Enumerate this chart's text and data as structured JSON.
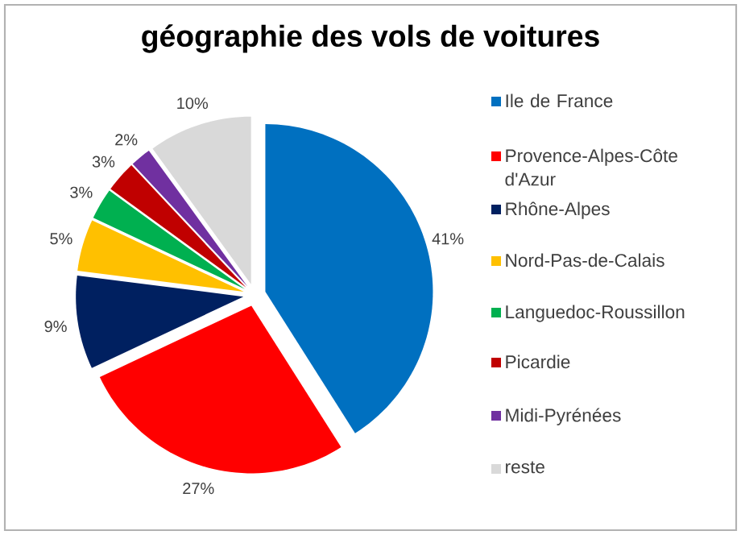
{
  "chart_data": {
    "type": "pie",
    "title": "géographie des vols de voitures",
    "categories": [
      "Ile de France",
      "Provence-Alpes-Côte d'Azur",
      "Rhône-Alpes",
      "Nord-Pas-de-Calais",
      "Languedoc-Roussillon",
      "Picardie",
      "Midi-Pyrénées",
      "reste"
    ],
    "values": [
      41,
      27,
      9,
      5,
      3,
      3,
      2,
      10
    ],
    "value_labels": [
      "41%",
      "27%",
      "9%",
      "5%",
      "3%",
      "3%",
      "2%",
      "10%"
    ],
    "colors": [
      "#0070c0",
      "#ff0000",
      "#002060",
      "#ffc000",
      "#00b050",
      "#c00000",
      "#7030a0",
      "#d9d9d9"
    ],
    "legend": "right"
  }
}
